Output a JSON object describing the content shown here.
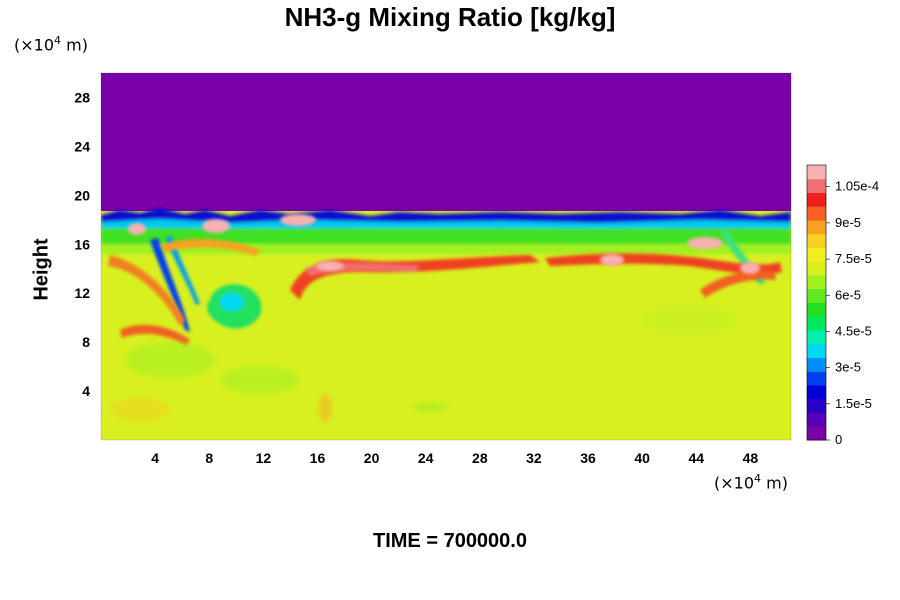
{
  "chart_data": {
    "type": "heatmap",
    "title": "NH3-g Mixing Ratio [kg/kg]",
    "ylabel": "Height",
    "x_unit": {
      "prefix": "(×10",
      "exp": "4",
      "suffix": " m)"
    },
    "y_unit": {
      "prefix": "(×10",
      "exp": "4",
      "suffix": " m)"
    },
    "xlim": [
      0,
      51
    ],
    "ylim": [
      0,
      30
    ],
    "x_ticks": [
      "4",
      "8",
      "12",
      "16",
      "20",
      "24",
      "28",
      "32",
      "36",
      "40",
      "44",
      "48"
    ],
    "x_tick_values": [
      4,
      8,
      12,
      16,
      20,
      24,
      28,
      32,
      36,
      40,
      44,
      48
    ],
    "y_ticks": [
      "4",
      "8",
      "12",
      "16",
      "20",
      "24",
      "28"
    ],
    "y_tick_values": [
      4,
      8,
      12,
      16,
      20,
      24,
      28
    ],
    "colorbar": {
      "vmin": 0,
      "vmax": 0.000114,
      "tick_labels": [
        "0",
        "1.5e-5",
        "3e-5",
        "4.5e-5",
        "6e-5",
        "7.5e-5",
        "9e-5",
        "1.05e-4"
      ],
      "tick_values": [
        0,
        1.5e-05,
        3e-05,
        4.5e-05,
        6e-05,
        7.5e-05,
        9e-05,
        0.000105
      ],
      "colors": [
        "#7a00a8",
        "#5a00b8",
        "#2a00c8",
        "#0000d8",
        "#0040f0",
        "#0090f8",
        "#00d8f0",
        "#00f0b0",
        "#00e860",
        "#20e020",
        "#60e820",
        "#a0f020",
        "#d8f020",
        "#f0f020",
        "#f8d020",
        "#f8a020",
        "#f86020",
        "#f02020",
        "#f07070",
        "#f8b0b0"
      ]
    },
    "regions": [
      {
        "name": "upper layer",
        "x": [
          0,
          51
        ],
        "y": [
          18.5,
          30
        ],
        "value": 0
      },
      {
        "name": "mid layer",
        "x": [
          0,
          51
        ],
        "y": [
          15.5,
          18.2
        ],
        "value": 6e-05
      },
      {
        "name": "lower layer",
        "x": [
          0,
          51
        ],
        "y": [
          0,
          15.5
        ],
        "value": 7.8e-05
      }
    ]
  },
  "footer": {
    "time_label": "TIME = 700000.0"
  }
}
